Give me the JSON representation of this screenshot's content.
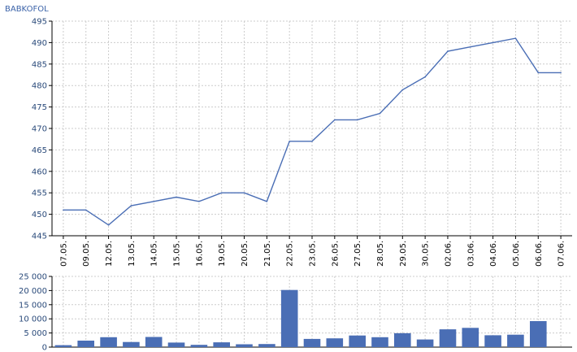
{
  "chart_data": {
    "title": "BABKOFOL",
    "categories": [
      "07.05.",
      "09.05.",
      "12.05.",
      "13.05.",
      "14.05.",
      "15.05.",
      "16.05.",
      "19.05.",
      "20.05.",
      "21.05.",
      "22.05.",
      "23.05.",
      "26.05.",
      "27.05.",
      "28.05.",
      "29.05.",
      "30.05.",
      "02.06.",
      "03.06.",
      "04.06.",
      "05.06.",
      "06.06.",
      "07.06."
    ],
    "price": {
      "type": "line",
      "values": [
        451,
        451,
        447.5,
        452,
        453,
        454,
        453,
        455,
        455,
        453,
        467,
        467,
        472,
        472,
        473.5,
        479,
        482,
        488,
        489,
        490,
        491,
        483,
        483
      ],
      "ylim": [
        445,
        495
      ],
      "yticks": [
        445,
        450,
        455,
        460,
        465,
        470,
        475,
        480,
        485,
        490,
        495
      ],
      "color": "#4a6eb5"
    },
    "volume": {
      "type": "bar",
      "values": [
        700,
        2300,
        3500,
        1800,
        3600,
        1600,
        800,
        1700,
        1000,
        1100,
        20200,
        2900,
        3100,
        4100,
        3500,
        4900,
        2700,
        6300,
        6800,
        4200,
        4400,
        9200,
        0
      ],
      "ylim": [
        0,
        25000
      ],
      "yticks": [
        0,
        5000,
        10000,
        15000,
        20000,
        25000
      ],
      "ytick_labels": [
        "0",
        "5 000",
        "10 000",
        "15 000",
        "20 000",
        "25 000"
      ],
      "color": "#4a6eb5"
    }
  }
}
